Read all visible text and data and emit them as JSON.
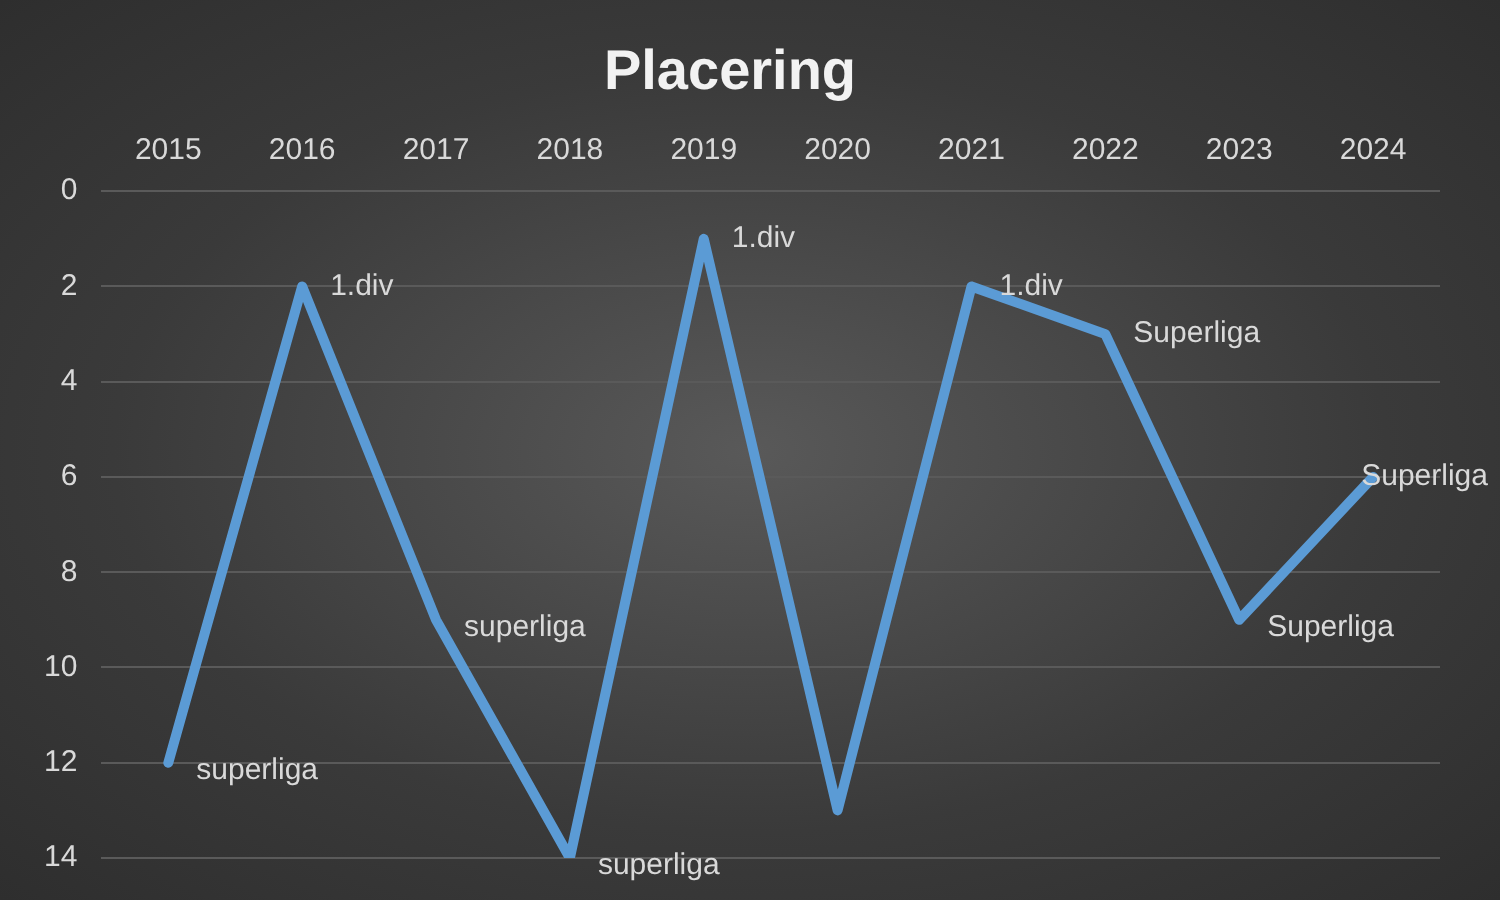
{
  "chart_data": {
    "type": "line",
    "title": "Placering",
    "categories": [
      "2015",
      "2016",
      "2017",
      "2018",
      "2019",
      "2020",
      "2021",
      "2022",
      "2023",
      "2024"
    ],
    "series": [
      {
        "color": "#5b9bd5",
        "values": [
          12,
          2,
          9,
          14,
          1,
          13,
          2,
          3,
          9,
          6
        ]
      }
    ],
    "annotations": [
      {
        "text": "superliga",
        "x": "2015",
        "y": 12
      },
      {
        "text": "1.div",
        "x": "2016",
        "y": 2
      },
      {
        "text": "superliga",
        "x": "2017",
        "y": 9
      },
      {
        "text": "superliga",
        "x": "2018",
        "y": 14
      },
      {
        "text": "1.div",
        "x": "2019",
        "y": 1
      },
      {
        "text": "1.div",
        "x": "2021",
        "y": 2
      },
      {
        "text": "Superliga",
        "x": "2022",
        "y": 3
      },
      {
        "text": "Superliga",
        "x": "2023",
        "y": 9
      },
      {
        "text": "Superliga",
        "x": "2024",
        "y": 6
      }
    ],
    "ylim": [
      14,
      0
    ],
    "yticks": [
      0,
      2,
      4,
      6,
      8,
      10,
      12,
      14
    ],
    "grid": "y",
    "legend": false,
    "marker": "none",
    "line_style": "solid"
  }
}
